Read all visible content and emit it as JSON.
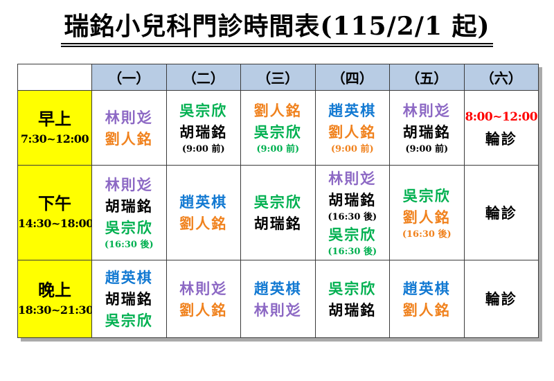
{
  "title": "瑞銘小兒科門診時間表(115/2/1 起)",
  "colors": {
    "purple": "#8C68C4",
    "orange": "#F0821E",
    "green": "#00B050",
    "blue": "#1279D2",
    "black": "#000000",
    "red": "#FF0000",
    "header_bg": "#B8CCE4",
    "rowheader_bg": "#FFFF00",
    "border": "#3a3a3a"
  },
  "table": {
    "corner_label": "",
    "day_headers": [
      "（一）",
      "（二）",
      "（三）",
      "（四）",
      "（五）",
      "（六）"
    ],
    "rows": [
      {
        "period": "早上",
        "hours": "7:30~12:00",
        "cells": [
          [
            {
              "text": "林則彣",
              "color": "purple",
              "kind": "name"
            },
            {
              "text": "劉人銘",
              "color": "orange",
              "kind": "name"
            }
          ],
          [
            {
              "text": "吳宗欣",
              "color": "green",
              "kind": "name"
            },
            {
              "text": "胡瑞銘",
              "color": "black",
              "kind": "name"
            },
            {
              "text": "(9:00 前)",
              "color": "black",
              "kind": "note"
            }
          ],
          [
            {
              "text": "劉人銘",
              "color": "orange",
              "kind": "name"
            },
            {
              "text": "吳宗欣",
              "color": "green",
              "kind": "name"
            },
            {
              "text": "(9:00 前)",
              "color": "green",
              "kind": "note"
            }
          ],
          [
            {
              "text": "趙英棋",
              "color": "blue",
              "kind": "name"
            },
            {
              "text": "劉人銘",
              "color": "orange",
              "kind": "name"
            },
            {
              "text": "(9:00 前)",
              "color": "orange",
              "kind": "note"
            }
          ],
          [
            {
              "text": "林則彣",
              "color": "purple",
              "kind": "name"
            },
            {
              "text": "胡瑞銘",
              "color": "black",
              "kind": "name"
            },
            {
              "text": "(9:00 前)",
              "color": "black",
              "kind": "note"
            }
          ],
          [
            {
              "text": "8:00~12:00",
              "color": "red",
              "kind": "time"
            },
            {
              "text": "輪診",
              "color": "black",
              "kind": "name"
            }
          ]
        ]
      },
      {
        "period": "下午",
        "hours": "14:30~18:00",
        "cells": [
          [
            {
              "text": "林則彣",
              "color": "purple",
              "kind": "name"
            },
            {
              "text": "胡瑞銘",
              "color": "black",
              "kind": "name"
            },
            {
              "text": "吳宗欣",
              "color": "green",
              "kind": "name"
            },
            {
              "text": "(16:30 後)",
              "color": "green",
              "kind": "note"
            }
          ],
          [
            {
              "text": "趙英棋",
              "color": "blue",
              "kind": "name"
            },
            {
              "text": "劉人銘",
              "color": "orange",
              "kind": "name"
            }
          ],
          [
            {
              "text": "吳宗欣",
              "color": "green",
              "kind": "name"
            },
            {
              "text": "胡瑞銘",
              "color": "black",
              "kind": "name"
            }
          ],
          [
            {
              "text": "林則彣",
              "color": "purple",
              "kind": "name"
            },
            {
              "text": "胡瑞銘",
              "color": "black",
              "kind": "name"
            },
            {
              "text": "(16:30 後)",
              "color": "black",
              "kind": "note"
            },
            {
              "text": "吳宗欣",
              "color": "green",
              "kind": "name"
            },
            {
              "text": "(16:30 後)",
              "color": "green",
              "kind": "note"
            }
          ],
          [
            {
              "text": "吳宗欣",
              "color": "green",
              "kind": "name"
            },
            {
              "text": "劉人銘",
              "color": "orange",
              "kind": "name"
            },
            {
              "text": "(16:30 後)",
              "color": "orange",
              "kind": "note"
            }
          ],
          [
            {
              "text": "輪診",
              "color": "black",
              "kind": "name"
            }
          ]
        ]
      },
      {
        "period": "晚上",
        "hours": "18:30~21:30",
        "cells": [
          [
            {
              "text": "趙英棋",
              "color": "blue",
              "kind": "name"
            },
            {
              "text": "胡瑞銘",
              "color": "black",
              "kind": "name"
            },
            {
              "text": "吳宗欣",
              "color": "green",
              "kind": "name"
            }
          ],
          [
            {
              "text": "林則彣",
              "color": "purple",
              "kind": "name"
            },
            {
              "text": "劉人銘",
              "color": "orange",
              "kind": "name"
            }
          ],
          [
            {
              "text": "趙英棋",
              "color": "blue",
              "kind": "name"
            },
            {
              "text": "林則彣",
              "color": "purple",
              "kind": "name"
            }
          ],
          [
            {
              "text": "吳宗欣",
              "color": "green",
              "kind": "name"
            },
            {
              "text": "胡瑞銘",
              "color": "black",
              "kind": "name"
            }
          ],
          [
            {
              "text": "趙英棋",
              "color": "blue",
              "kind": "name"
            },
            {
              "text": "劉人銘",
              "color": "orange",
              "kind": "name"
            }
          ],
          [
            {
              "text": "輪診",
              "color": "black",
              "kind": "name"
            }
          ]
        ]
      }
    ]
  }
}
